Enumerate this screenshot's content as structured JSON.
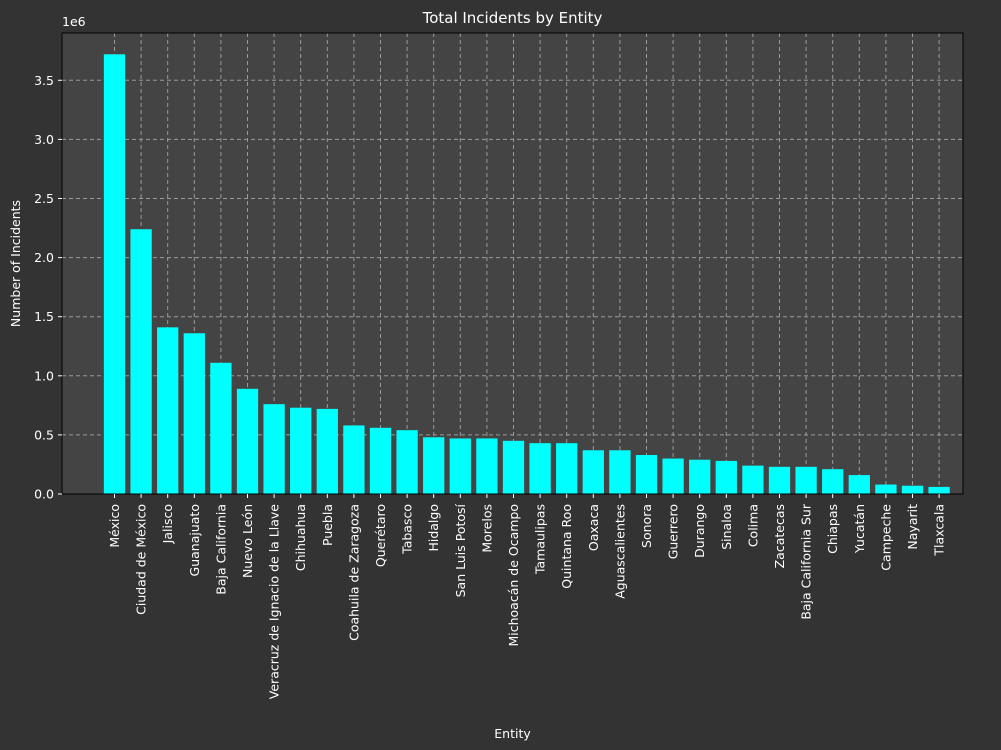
{
  "chart_data": {
    "type": "bar",
    "title": "Total Incidents by Entity",
    "xlabel": "Entity",
    "ylabel": "Number of Incidents",
    "y_offset_label": "1e6",
    "ylim": [
      0,
      3.9
    ],
    "yticks": [
      0.0,
      0.5,
      1.0,
      1.5,
      2.0,
      2.5,
      3.0,
      3.5
    ],
    "ytick_labels": [
      "0.0",
      "0.5",
      "1.0",
      "1.5",
      "2.0",
      "2.5",
      "3.0",
      "3.5"
    ],
    "grid": true,
    "categories": [
      "México",
      "Ciudad de México",
      "Jalisco",
      "Guanajuato",
      "Baja California",
      "Nuevo León",
      "Veracruz de Ignacio de la Llave",
      "Chihuahua",
      "Puebla",
      "Coahuila de Zaragoza",
      "Querétaro",
      "Tabasco",
      "Hidalgo",
      "San Luis Potosí",
      "Morelos",
      "Michoacán de Ocampo",
      "Tamaulipas",
      "Quintana Roo",
      "Oaxaca",
      "Aguascalientes",
      "Sonora",
      "Guerrero",
      "Durango",
      "Sinaloa",
      "Colima",
      "Zacatecas",
      "Baja California Sur",
      "Chiapas",
      "Yucatán",
      "Campeche",
      "Nayarit",
      "Tlaxcala"
    ],
    "values": [
      3.72,
      2.24,
      1.41,
      1.36,
      1.11,
      0.89,
      0.76,
      0.73,
      0.72,
      0.58,
      0.56,
      0.54,
      0.48,
      0.47,
      0.47,
      0.45,
      0.43,
      0.43,
      0.37,
      0.37,
      0.33,
      0.3,
      0.29,
      0.28,
      0.24,
      0.23,
      0.23,
      0.21,
      0.16,
      0.08,
      0.07,
      0.06
    ],
    "colors": {
      "bar": "#00ffff",
      "plot_bg": "#444444",
      "figure_bg": "#333333",
      "text": "#ffffff",
      "grid": "#9a9a9a"
    }
  }
}
